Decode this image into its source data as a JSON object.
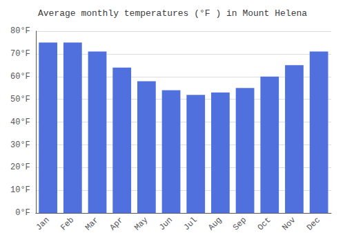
{
  "chart_data": {
    "type": "bar",
    "title": "Average monthly temperatures (°F ) in Mount Helena",
    "categories": [
      "Jan",
      "Feb",
      "Mar",
      "Apr",
      "May",
      "Jun",
      "Jul",
      "Aug",
      "Sep",
      "Oct",
      "Nov",
      "Dec"
    ],
    "values": [
      75,
      75,
      71,
      64,
      58,
      54,
      52,
      53,
      55,
      60,
      65,
      71
    ],
    "ylim": [
      0,
      80
    ],
    "yticks": [
      {
        "value": 0,
        "label": "0°F"
      },
      {
        "value": 10,
        "label": "10°F"
      },
      {
        "value": 20,
        "label": "20°F"
      },
      {
        "value": 30,
        "label": "30°F"
      },
      {
        "value": 40,
        "label": "40°F"
      },
      {
        "value": 50,
        "label": "50°F"
      },
      {
        "value": 60,
        "label": "60°F"
      },
      {
        "value": 70,
        "label": "70°F"
      },
      {
        "value": 80,
        "label": "80°F"
      }
    ],
    "grid": true
  }
}
